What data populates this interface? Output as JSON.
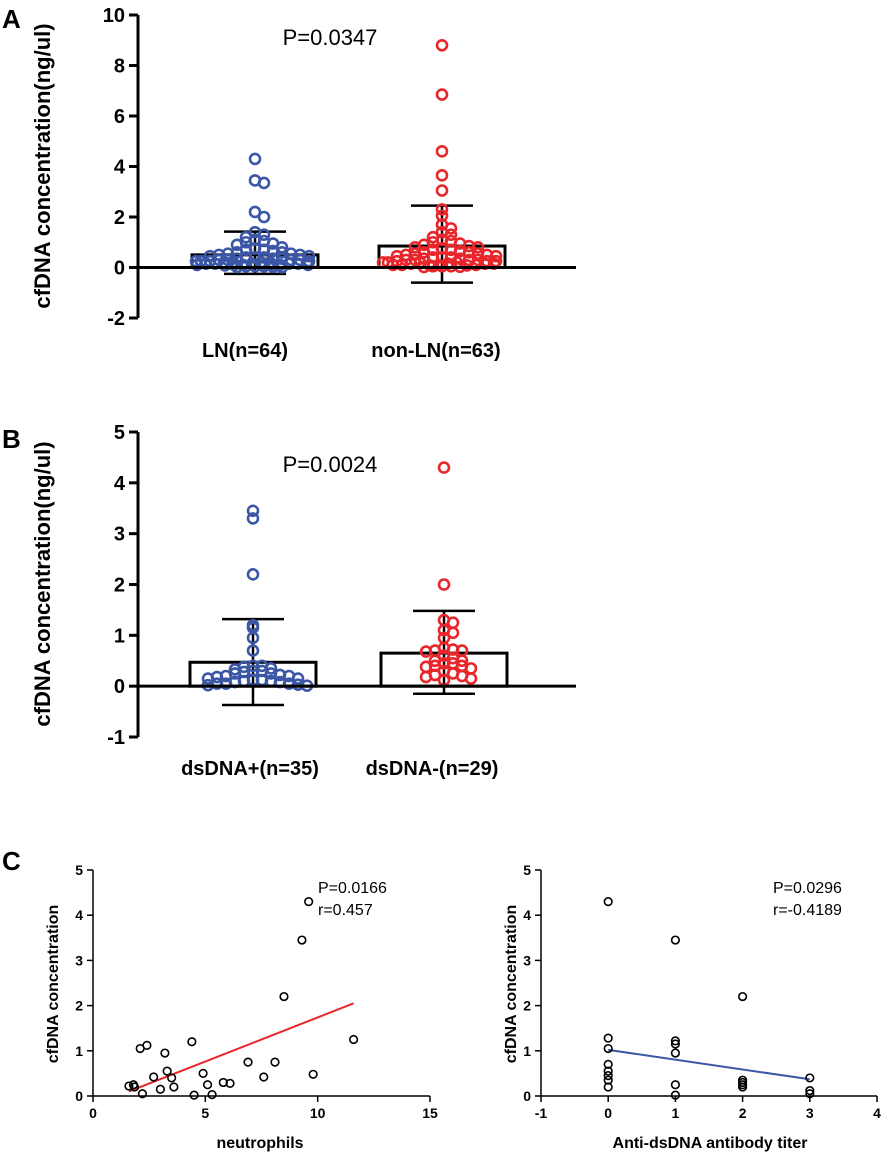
{
  "figure": {
    "panels": [
      {
        "label": "A"
      },
      {
        "label": "B"
      },
      {
        "label": "C"
      }
    ]
  },
  "chart_data": [
    {
      "id": "A",
      "type": "scatter",
      "subtype": "bar-with-dots",
      "ylabel": "cfDNA concentration(ng/ul)",
      "ylim": [
        -2,
        10
      ],
      "yticks": [
        -2,
        0,
        2,
        4,
        6,
        8,
        10
      ],
      "annotation": "P=0.0347",
      "groups": [
        {
          "name": "LN(n=64)",
          "color": "#3b57a6",
          "mean": 0.5,
          "sd_upper": 1.42,
          "sd_lower": -0.25,
          "values": [
            4.3,
            3.45,
            3.35,
            2.2,
            2.0,
            1.4,
            1.3,
            1.2,
            1.1,
            1.05,
            1.0,
            0.95,
            0.9,
            0.8,
            0.75,
            0.7,
            0.7,
            0.65,
            0.6,
            0.6,
            0.55,
            0.55,
            0.5,
            0.5,
            0.45,
            0.45,
            0.4,
            0.4,
            0.4,
            0.35,
            0.35,
            0.35,
            0.3,
            0.3,
            0.3,
            0.3,
            0.25,
            0.25,
            0.25,
            0.25,
            0.2,
            0.2,
            0.2,
            0.2,
            0.2,
            0.15,
            0.15,
            0.15,
            0.15,
            0.15,
            0.1,
            0.1,
            0.1,
            0.1,
            0.1,
            0.1,
            0.08,
            0.08,
            0.05,
            0.05,
            0.05,
            0.03,
            0.02,
            0.01
          ]
        },
        {
          "name": "non-LN(n=63)",
          "color": "#e8262b",
          "mean": 0.85,
          "sd_upper": 2.45,
          "sd_lower": -0.6,
          "values": [
            8.8,
            6.85,
            4.6,
            3.65,
            3.05,
            2.3,
            2.05,
            1.7,
            1.55,
            1.4,
            1.3,
            1.2,
            1.1,
            1.05,
            1.0,
            0.95,
            0.9,
            0.85,
            0.8,
            0.8,
            0.75,
            0.7,
            0.7,
            0.65,
            0.6,
            0.6,
            0.55,
            0.55,
            0.5,
            0.5,
            0.45,
            0.45,
            0.4,
            0.4,
            0.4,
            0.35,
            0.35,
            0.3,
            0.3,
            0.3,
            0.3,
            0.25,
            0.25,
            0.25,
            0.2,
            0.2,
            0.2,
            0.2,
            0.15,
            0.15,
            0.15,
            0.15,
            0.1,
            0.1,
            0.1,
            0.1,
            0.08,
            0.08,
            0.05,
            0.05,
            0.05,
            0.03,
            0.02
          ]
        }
      ]
    },
    {
      "id": "B",
      "type": "scatter",
      "subtype": "bar-with-dots",
      "ylabel": "cfDNA concentration(ng/ul)",
      "ylim": [
        -1,
        5
      ],
      "yticks": [
        -1,
        0,
        1,
        2,
        3,
        4,
        5
      ],
      "annotation": "P=0.0024",
      "groups": [
        {
          "name": "dsDNA+(n=35)",
          "color": "#3b57a6",
          "mean": 0.47,
          "sd_upper": 1.32,
          "sd_lower": -0.37,
          "values": [
            3.45,
            3.3,
            2.2,
            1.2,
            1.15,
            0.95,
            0.7,
            0.4,
            0.4,
            0.38,
            0.35,
            0.33,
            0.3,
            0.3,
            0.28,
            0.25,
            0.25,
            0.22,
            0.2,
            0.2,
            0.18,
            0.15,
            0.15,
            0.12,
            0.12,
            0.1,
            0.1,
            0.08,
            0.08,
            0.05,
            0.05,
            0.05,
            0.03,
            0.02,
            0.01
          ]
        },
        {
          "name": "dsDNA-(n=29)",
          "color": "#e8262b",
          "mean": 0.65,
          "sd_upper": 1.48,
          "sd_lower": -0.15,
          "values": [
            4.3,
            2.0,
            1.3,
            1.25,
            1.1,
            1.05,
            0.95,
            0.75,
            0.72,
            0.7,
            0.7,
            0.68,
            0.6,
            0.55,
            0.5,
            0.5,
            0.45,
            0.45,
            0.4,
            0.4,
            0.38,
            0.35,
            0.3,
            0.25,
            0.22,
            0.2,
            0.18,
            0.15,
            0.12
          ]
        }
      ]
    },
    {
      "id": "C-left",
      "type": "scatter",
      "xlabel": "neutrophils",
      "ylabel": "cfDNA concentration",
      "xlim": [
        0,
        15
      ],
      "ylim": [
        0,
        5
      ],
      "xticks": [
        0,
        5,
        10,
        15
      ],
      "yticks": [
        0,
        1,
        2,
        3,
        4,
        5
      ],
      "stats": [
        "P=0.0166",
        "r=0.457"
      ],
      "fit_line": {
        "color": "#e8262b",
        "x": [
          1.6,
          11.6
        ],
        "y": [
          0.1,
          2.05
        ]
      },
      "points": [
        [
          1.6,
          0.22
        ],
        [
          1.8,
          0.25
        ],
        [
          1.85,
          0.2
        ],
        [
          2.1,
          1.05
        ],
        [
          2.2,
          0.05
        ],
        [
          2.4,
          1.12
        ],
        [
          2.7,
          0.42
        ],
        [
          3.0,
          0.15
        ],
        [
          3.2,
          0.95
        ],
        [
          3.3,
          0.55
        ],
        [
          3.5,
          0.4
        ],
        [
          3.6,
          0.2
        ],
        [
          4.4,
          1.2
        ],
        [
          4.5,
          0.02
        ],
        [
          4.9,
          0.5
        ],
        [
          5.1,
          0.25
        ],
        [
          5.3,
          0.03
        ],
        [
          5.8,
          0.3
        ],
        [
          6.1,
          0.28
        ],
        [
          6.9,
          0.75
        ],
        [
          7.6,
          0.42
        ],
        [
          8.1,
          0.75
        ],
        [
          8.5,
          2.2
        ],
        [
          9.3,
          3.45
        ],
        [
          9.6,
          4.3
        ],
        [
          9.8,
          0.48
        ],
        [
          11.6,
          1.25
        ]
      ]
    },
    {
      "id": "C-right",
      "type": "scatter",
      "xlabel": "Anti-dsDNA antibody titer",
      "ylabel": "cfDNA concentration",
      "xlim": [
        -1,
        4
      ],
      "ylim": [
        0,
        5
      ],
      "xticks": [
        -1,
        0,
        1,
        2,
        3,
        4
      ],
      "yticks": [
        0,
        1,
        2,
        3,
        4,
        5
      ],
      "stats": [
        "P=0.0296",
        "r=-0.4189"
      ],
      "fit_line": {
        "color": "#3b57a6",
        "x": [
          0,
          3
        ],
        "y": [
          1.02,
          0.37
        ]
      },
      "points": [
        [
          0,
          4.3
        ],
        [
          0,
          1.28
        ],
        [
          0,
          1.05
        ],
        [
          0,
          0.7
        ],
        [
          0,
          0.55
        ],
        [
          0,
          0.45
        ],
        [
          0,
          0.35
        ],
        [
          0,
          0.2
        ],
        [
          1,
          3.45
        ],
        [
          1,
          1.22
        ],
        [
          1,
          1.15
        ],
        [
          1,
          0.95
        ],
        [
          1,
          0.25
        ],
        [
          1,
          0.02
        ],
        [
          2,
          2.2
        ],
        [
          2,
          0.35
        ],
        [
          2,
          0.3
        ],
        [
          2,
          0.25
        ],
        [
          2,
          0.2
        ],
        [
          3,
          0.4
        ],
        [
          3,
          0.12
        ],
        [
          3,
          0.05
        ]
      ]
    }
  ]
}
